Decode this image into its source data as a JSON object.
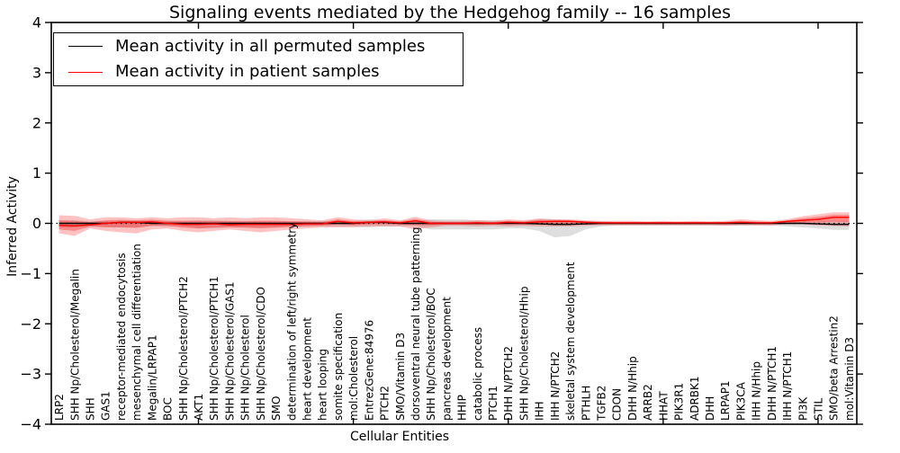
{
  "title": "Signaling events mediated by the Hedgehog family -- 16 samples",
  "legend": {
    "items": [
      {
        "label": "Mean activity in all permuted samples",
        "color": "#000000"
      },
      {
        "label": "Mean activity in patient samples",
        "color": "#ff0000"
      }
    ]
  },
  "chart_data": {
    "type": "line",
    "title": "Signaling events mediated by the Hedgehog family -- 16 samples",
    "xlabel": "Cellular Entities",
    "ylabel": "Inferred Activity",
    "ylim": [
      -4,
      4
    ],
    "yticks": [
      -4,
      -3,
      -2,
      -1,
      0,
      1,
      2,
      3,
      4
    ],
    "x_major_tick_indices": [
      9,
      19,
      29,
      39,
      49
    ],
    "grid": false,
    "legend_position": "upper left",
    "entities": [
      "LRP2",
      "SHH Np/Cholesterol/Megalin",
      "SHH",
      "GAS1",
      "receptor-mediated endocytosis",
      "mesenchymal cell differentiation",
      "Megalin/LRPAP1",
      "BOC",
      "SHH Np/Cholesterol/PTCH2",
      "AKT1",
      "SHH Np/Cholesterol/PTCH1",
      "SHH Np/Cholesterol/GAS1",
      "SHH Np/Cholesterol",
      "SHH Np/Cholesterol/CDO",
      "SMO",
      "determination of left/right symmetry",
      "heart development",
      "heart looping",
      "somite specification",
      "mol:Cholesterol",
      "EntrezGene:84976",
      "PTCH2",
      "SMO/Vitamin D3",
      "dorsoventral neural tube patterning",
      "SHH Np/Cholesterol/BOC",
      "pancreas development",
      "HHIP",
      "catabolic process",
      "PTCH1",
      "DHH N/PTCH2",
      "SHH Np/Cholesterol/Hhip",
      "IHH",
      "IHH N/PTCH2",
      "skeletal system development",
      "PTHLH",
      "TGFB2",
      "CDON",
      "DHH N/Hhip",
      "ARRB2",
      "HHAT",
      "PIK3R1",
      "ADRBK1",
      "DHH",
      "LRPAP1",
      "PIK3CA",
      "IHH N/Hhip",
      "DHH N/PTCH1",
      "IHH N/PTCH1",
      "PI3K",
      "STIL",
      "SMO/beta Arrestin2",
      "mol:Vitamin D3"
    ],
    "series": [
      {
        "name": "Mean activity in all permuted samples",
        "color": "#000000",
        "style": "solid",
        "values": [
          0,
          0,
          0,
          0,
          0.02,
          0.02,
          0,
          0,
          0,
          0,
          0,
          0,
          0,
          0,
          0,
          0,
          0,
          0,
          0,
          0,
          0.02,
          0.02,
          0,
          0,
          0,
          0,
          0,
          0,
          0,
          0,
          0,
          -0.01,
          -0.02,
          -0.02,
          -0.01,
          0,
          0,
          0,
          0,
          0,
          0,
          0,
          0,
          0,
          0,
          0,
          0,
          0,
          0,
          -0.01,
          -0.02,
          -0.02
        ]
      },
      {
        "name": "Mean activity in patient samples",
        "color": "#ff0000",
        "style": "solid",
        "values": [
          -0.04,
          -0.05,
          -0.03,
          0,
          0.02,
          0.02,
          0.03,
          0,
          -0.02,
          -0.02,
          -0.01,
          -0.03,
          -0.02,
          -0.02,
          -0.02,
          -0.02,
          -0.01,
          -0.01,
          0.04,
          0.01,
          0.02,
          0.03,
          0.01,
          0.05,
          0,
          0,
          0,
          0.01,
          0,
          0.02,
          0.01,
          0.03,
          0.04,
          0.04,
          0.02,
          0.01,
          0.01,
          0.01,
          0.01,
          0.01,
          0.01,
          0.01,
          0.01,
          0.01,
          0.02,
          0.01,
          0.01,
          0.04,
          0.06,
          0.08,
          0.12,
          0.12
        ]
      }
    ],
    "zero_line": {
      "value": 0,
      "style": "dotted",
      "color": "#000000"
    },
    "bands": [
      {
        "name": "permuted-sample-range",
        "color": "#999999",
        "opacity": 0.32,
        "upper": [
          0.06,
          0.06,
          0.04,
          0.05,
          0.05,
          0.05,
          0.05,
          0.05,
          0.05,
          0.06,
          0.06,
          0.05,
          0.05,
          0.05,
          0.05,
          0.04,
          0.04,
          0.05,
          0.05,
          0.05,
          0.08,
          0.05,
          0.05,
          0.05,
          0.08,
          0.08,
          0.08,
          0.06,
          0.06,
          0.05,
          0.05,
          0.08,
          0.08,
          0.06,
          0.05,
          0.04,
          0.03,
          0.03,
          0.03,
          0.03,
          0.03,
          0.03,
          0.03,
          0.03,
          0.03,
          0.03,
          0.03,
          0.03,
          0.04,
          0.04,
          0.05,
          0.05
        ],
        "lower": [
          -0.08,
          -0.08,
          -0.05,
          -0.08,
          -0.08,
          -0.08,
          -0.06,
          -0.06,
          -0.06,
          -0.1,
          -0.1,
          -0.08,
          -0.08,
          -0.08,
          -0.08,
          -0.06,
          -0.06,
          -0.06,
          -0.06,
          -0.06,
          -0.08,
          -0.06,
          -0.06,
          -0.05,
          -0.12,
          -0.12,
          -0.12,
          -0.12,
          -0.12,
          -0.1,
          -0.1,
          -0.15,
          -0.28,
          -0.25,
          -0.12,
          -0.06,
          -0.04,
          -0.04,
          -0.04,
          -0.04,
          -0.04,
          -0.04,
          -0.04,
          -0.04,
          -0.04,
          -0.04,
          -0.04,
          -0.06,
          -0.08,
          -0.1,
          -0.13,
          -0.13
        ]
      },
      {
        "name": "patient-sample-range",
        "color": "#ff0000",
        "opacity": 0.24,
        "upper": [
          0.16,
          0.15,
          0.08,
          0.12,
          0.12,
          0.1,
          0.12,
          0.1,
          0.12,
          0.12,
          0.1,
          0.12,
          0.1,
          0.12,
          0.12,
          0.1,
          0.08,
          0.06,
          0.12,
          0.08,
          0.06,
          0.1,
          0.06,
          0.13,
          0.06,
          0.05,
          0.05,
          0.06,
          0.05,
          0.08,
          0.06,
          0.1,
          0.08,
          0.08,
          0.06,
          0.05,
          0.05,
          0.05,
          0.04,
          0.05,
          0.04,
          0.05,
          0.04,
          0.05,
          0.08,
          0.06,
          0.05,
          0.08,
          0.14,
          0.18,
          0.22,
          0.22
        ],
        "lower": [
          -0.2,
          -0.25,
          -0.1,
          -0.15,
          -0.18,
          -0.2,
          -0.12,
          -0.1,
          -0.15,
          -0.18,
          -0.15,
          -0.12,
          -0.15,
          -0.18,
          -0.15,
          -0.12,
          -0.1,
          -0.08,
          -0.08,
          -0.08,
          -0.06,
          -0.06,
          -0.06,
          -0.12,
          -0.08,
          -0.05,
          -0.05,
          -0.06,
          -0.05,
          -0.06,
          -0.05,
          -0.06,
          -0.06,
          -0.06,
          -0.05,
          -0.04,
          -0.04,
          -0.04,
          -0.04,
          -0.04,
          -0.04,
          -0.04,
          -0.04,
          -0.05,
          -0.04,
          -0.04,
          -0.04,
          -0.02,
          -0.02,
          -0.04,
          -0.05,
          -0.06
        ]
      },
      {
        "name": "patient-sample-core-range",
        "color": "#ff0000",
        "opacity": 0.3,
        "scale_of_previous": 0.5,
        "center_series": 1
      }
    ]
  }
}
